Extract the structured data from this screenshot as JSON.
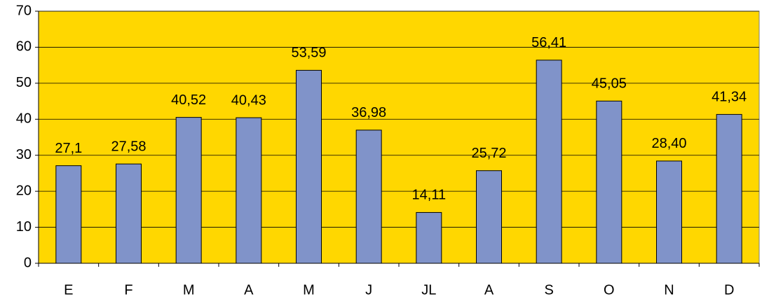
{
  "chart_data": {
    "type": "bar",
    "categories": [
      "E",
      "F",
      "M",
      "A",
      "M",
      "J",
      "JL",
      "A",
      "S",
      "O",
      "N",
      "D"
    ],
    "values": [
      27.1,
      27.58,
      40.52,
      40.43,
      53.59,
      36.98,
      14.11,
      25.72,
      56.41,
      45.05,
      28.4,
      41.34
    ],
    "value_labels": [
      "27,1",
      "27,58",
      "40,52",
      "40,43",
      "53,59",
      "36,98",
      "14,11",
      "25,72",
      "56,41",
      "45,05",
      "28,40",
      "41,34"
    ],
    "color": "#8093c9",
    "background": "#ffd700",
    "ylim": [
      0,
      70
    ],
    "yticks": [
      0,
      10,
      20,
      30,
      40,
      50,
      60,
      70
    ],
    "grid": true
  }
}
